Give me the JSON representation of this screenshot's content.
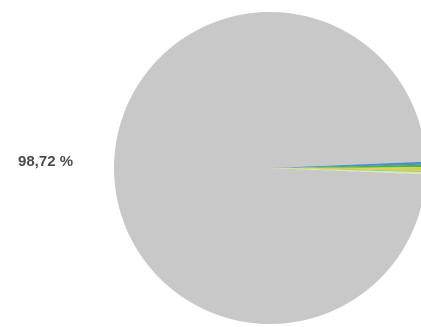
{
  "chart_data": {
    "type": "pie",
    "slices": [
      {
        "label": "98,72 %",
        "value": 98.72,
        "color": "#c8c8c8"
      },
      {
        "label": "",
        "value": 0.3,
        "color": "#4a8fc8"
      },
      {
        "label": "",
        "value": 0.25,
        "color": "#4fae4f"
      },
      {
        "label": "",
        "value": 0.2,
        "color": "#c4d84a"
      },
      {
        "label": "",
        "value": 0.18,
        "color": "#e8c84a"
      },
      {
        "label": "",
        "value": 0.15,
        "color": "#9ecf7a"
      },
      {
        "label": "",
        "value": 0.2,
        "color": "#d8e8b0"
      }
    ],
    "title": "",
    "legend": "none"
  }
}
